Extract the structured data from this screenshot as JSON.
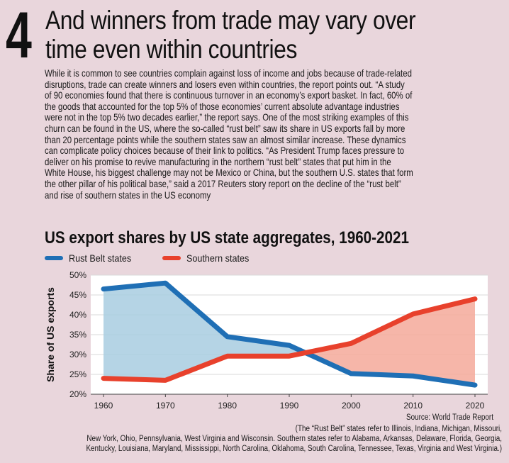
{
  "header": {
    "number": "4",
    "headline_lines": [
      "And winners from trade may vary over",
      "time even within countries"
    ]
  },
  "body_lines": [
    "While it is common to see countries complain against loss of income and jobs because of trade-related",
    "disruptions, trade can create winners and losers even within countries, the report points out. “A study",
    "of 90 economies found that there is continuous turnover in an economy’s export basket. In fact, 60% of",
    "the goods that accounted for the top 5% of those economies’ current absolute advantage industries",
    "were not in the top 5% two decades earlier,” the report says.  One of the most striking examples of this",
    "churn can be found in the US, where the so-called “rust belt” saw its share in US exports fall by more",
    "than 20 percentage points while the southern states saw an almost similar increase. These dynamics",
    "can complicate policy choices because of their link to politics. “As President Trump faces pressure to",
    "deliver on his promise to revive manufacturing in the northern “rust belt” states that put him in the",
    "White House, his biggest challenge may not be Mexico or China, but the southern U.S. states that form",
    "the other pillar of his political base,” said a 2017 Reuters story report on the decline of the “rust belt”",
    "and rise of southern states in the US economy"
  ],
  "chart_data": {
    "type": "area",
    "title": "US export shares by US state aggregates, 1960-2021",
    "xlabel": "",
    "ylabel": "Share of US exports",
    "x": [
      "1960",
      "1970",
      "1980",
      "1990",
      "2000",
      "2010",
      "2020"
    ],
    "y_ticks": [
      "50%",
      "45%",
      "40%",
      "35%",
      "30%",
      "25%",
      "20%"
    ],
    "ylim": [
      20,
      50
    ],
    "grid": "horizontal",
    "legend_position": "top-left",
    "series": [
      {
        "name": "Rust Belt states",
        "color": "#1f6fb5",
        "fill": "#a8cde0",
        "values": [
          46.5,
          48,
          34.5,
          32.3,
          25.2,
          24.6,
          22.3
        ]
      },
      {
        "name": "Southern states",
        "color": "#e8412c",
        "fill": "#f4a99a",
        "values": [
          24,
          23.5,
          29.6,
          29.6,
          32.8,
          40.2,
          44
        ]
      }
    ]
  },
  "source": "Source: World Trade Report",
  "footnote_lines": [
    "(The “Rust Belt” states refer to Illinois, Indiana, Michigan, Missouri,",
    "New York, Ohio, Pennsylvania, West Virginia and Wisconsin. Southern states refer to Alabama, Arkansas, Delaware, Florida, Georgia,",
    "Kentucky, Louisiana, Maryland, Mississippi, North Carolina, Oklahoma, South Carolina, Tennessee, Texas, Virginia and West Virginia.)"
  ]
}
